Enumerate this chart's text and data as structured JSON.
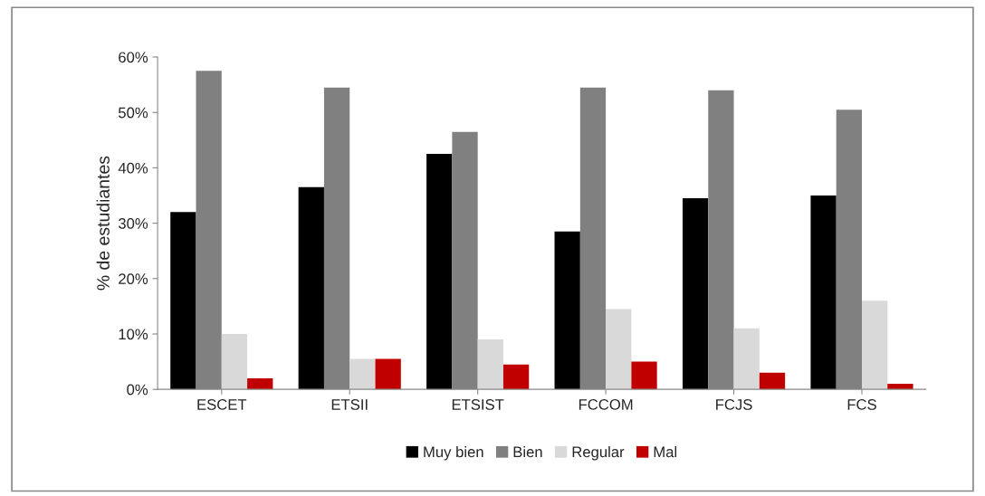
{
  "chart_data": {
    "type": "bar",
    "ylabel": "% de estudiantes",
    "categories": [
      "ESCET",
      "ETSII",
      "ETSIST",
      "FCCOM",
      "FCJS",
      "FCS"
    ],
    "series": [
      {
        "name": "Muy bien",
        "color": "#000000",
        "values": [
          32,
          36.5,
          42.5,
          28.5,
          34.5,
          35
        ]
      },
      {
        "name": "Bien",
        "color": "#808080",
        "values": [
          57.5,
          54.5,
          46.5,
          54.5,
          54,
          50.5
        ]
      },
      {
        "name": "Regular",
        "color": "#d9d9d9",
        "values": [
          10,
          5.5,
          9,
          14.5,
          11,
          16
        ]
      },
      {
        "name": "Mal",
        "color": "#c00000",
        "values": [
          2,
          5.5,
          4.5,
          5,
          3,
          1
        ]
      }
    ],
    "ylim": [
      0,
      60
    ],
    "yticks": [
      {
        "value": 0,
        "label": "0%"
      },
      {
        "value": 10,
        "label": "10%"
      },
      {
        "value": 20,
        "label": "20%"
      },
      {
        "value": 30,
        "label": "30%"
      },
      {
        "value": 40,
        "label": "40%"
      },
      {
        "value": 50,
        "label": "50%"
      },
      {
        "value": 60,
        "label": "60%"
      }
    ],
    "grid": false,
    "legend": "bottom"
  }
}
